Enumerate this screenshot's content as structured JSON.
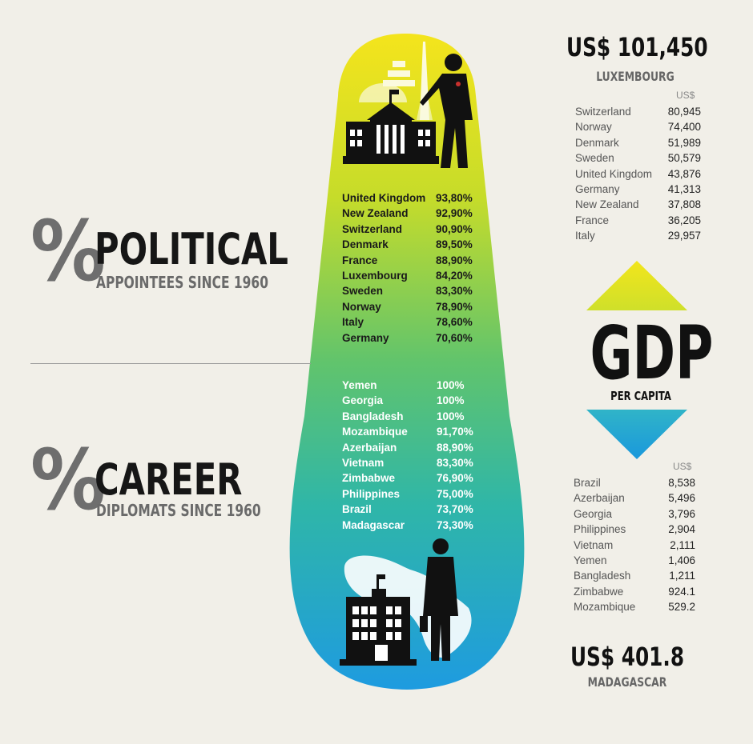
{
  "political": {
    "glyph": "%",
    "title": "POLITICAL",
    "subtitle": "APPOINTEES SINCE 1960"
  },
  "career": {
    "glyph": "%",
    "title": "CAREER",
    "subtitle": "DIPLOMATS SINCE 1960"
  },
  "gdp": {
    "word": "GDP",
    "subtitle": "PER CAPITA",
    "top_value": "US$ 101,450",
    "top_country": "LUXEMBOURG",
    "top_unit": "US$",
    "bottom_value": "US$ 401.8",
    "bottom_country": "MADAGASCAR",
    "bottom_unit": "US$"
  },
  "colors": {
    "pill_top": "#f4e41c",
    "pill_mid": "#52c27a",
    "pill_bottom": "#1f9be0",
    "arrow_up": "#e3e11f",
    "arrow_down": "#1faad8",
    "background": "#f1efe8"
  },
  "chart_data": [
    {
      "type": "table",
      "title": "% POLITICAL APPOINTEES SINCE 1960",
      "rows": [
        {
          "country": "United Kingdom",
          "value": "93,80%"
        },
        {
          "country": "New Zealand",
          "value": "92,90%"
        },
        {
          "country": "Switzerland",
          "value": "90,90%"
        },
        {
          "country": "Denmark",
          "value": "89,50%"
        },
        {
          "country": "France",
          "value": "88,90%"
        },
        {
          "country": "Luxembourg",
          "value": "84,20%"
        },
        {
          "country": "Sweden",
          "value": "83,30%"
        },
        {
          "country": "Norway",
          "value": "78,90%"
        },
        {
          "country": "Italy",
          "value": "78,60%"
        },
        {
          "country": "Germany",
          "value": "70,60%"
        }
      ]
    },
    {
      "type": "table",
      "title": "% CAREER DIPLOMATS SINCE 1960",
      "rows": [
        {
          "country": "Yemen",
          "value": "100%"
        },
        {
          "country": "Georgia",
          "value": "100%"
        },
        {
          "country": "Bangladesh",
          "value": "100%"
        },
        {
          "country": "Mozambique",
          "value": "91,70%"
        },
        {
          "country": "Azerbaijan",
          "value": "88,90%"
        },
        {
          "country": "Vietnam",
          "value": "83,30%"
        },
        {
          "country": "Zimbabwe",
          "value": "76,90%"
        },
        {
          "country": "Philippines",
          "value": "75,00%"
        },
        {
          "country": "Brazil",
          "value": "73,70%"
        },
        {
          "country": "Madagascar",
          "value": "73,30%"
        }
      ]
    },
    {
      "type": "table",
      "title": "GDP PER CAPITA (US$) – high",
      "rows": [
        {
          "country": "Switzerland",
          "value": "80,945"
        },
        {
          "country": "Norway",
          "value": "74,400"
        },
        {
          "country": "Denmark",
          "value": "51,989"
        },
        {
          "country": "Sweden",
          "value": "50,579"
        },
        {
          "country": "United Kingdom",
          "value": "43,876"
        },
        {
          "country": "Germany",
          "value": "41,313"
        },
        {
          "country": "New Zealand",
          "value": "37,808"
        },
        {
          "country": "France",
          "value": "36,205"
        },
        {
          "country": "Italy",
          "value": "29,957"
        }
      ]
    },
    {
      "type": "table",
      "title": "GDP PER CAPITA (US$) – low",
      "rows": [
        {
          "country": "Brazil",
          "value": "8,538"
        },
        {
          "country": "Azerbaijan",
          "value": "5,496"
        },
        {
          "country": "Georgia",
          "value": "3,796"
        },
        {
          "country": "Philippines",
          "value": "2,904"
        },
        {
          "country": "Vietnam",
          "value": "2,111"
        },
        {
          "country": "Yemen",
          "value": "1,406"
        },
        {
          "country": "Bangladesh",
          "value": "1,211"
        },
        {
          "country": "Zimbabwe",
          "value": "924.1"
        },
        {
          "country": "Mozambique",
          "value": "529.2"
        }
      ]
    }
  ]
}
